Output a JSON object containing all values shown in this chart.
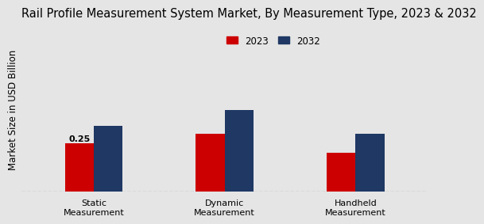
{
  "title": "Rail Profile Measurement System Market, By Measurement Type, 2023 & 2032",
  "ylabel": "Market Size in USD Billion",
  "categories": [
    "Static\nMeasurement",
    "Dynamic\nMeasurement",
    "Handheld\nMeasurement"
  ],
  "values_2023": [
    0.25,
    0.3,
    0.2
  ],
  "values_2032": [
    0.34,
    0.42,
    0.3
  ],
  "color_2023": "#cc0000",
  "color_2032": "#1f3864",
  "annotation_value": "0.25",
  "annotation_bar": 0,
  "bar_width": 0.22,
  "background_color": "#e5e5e5",
  "dashed_line_y": 0.0,
  "legend_labels": [
    "2023",
    "2032"
  ],
  "ylim_max": 0.85,
  "title_fontsize": 10.5,
  "axis_label_fontsize": 8.5,
  "tick_fontsize": 8
}
